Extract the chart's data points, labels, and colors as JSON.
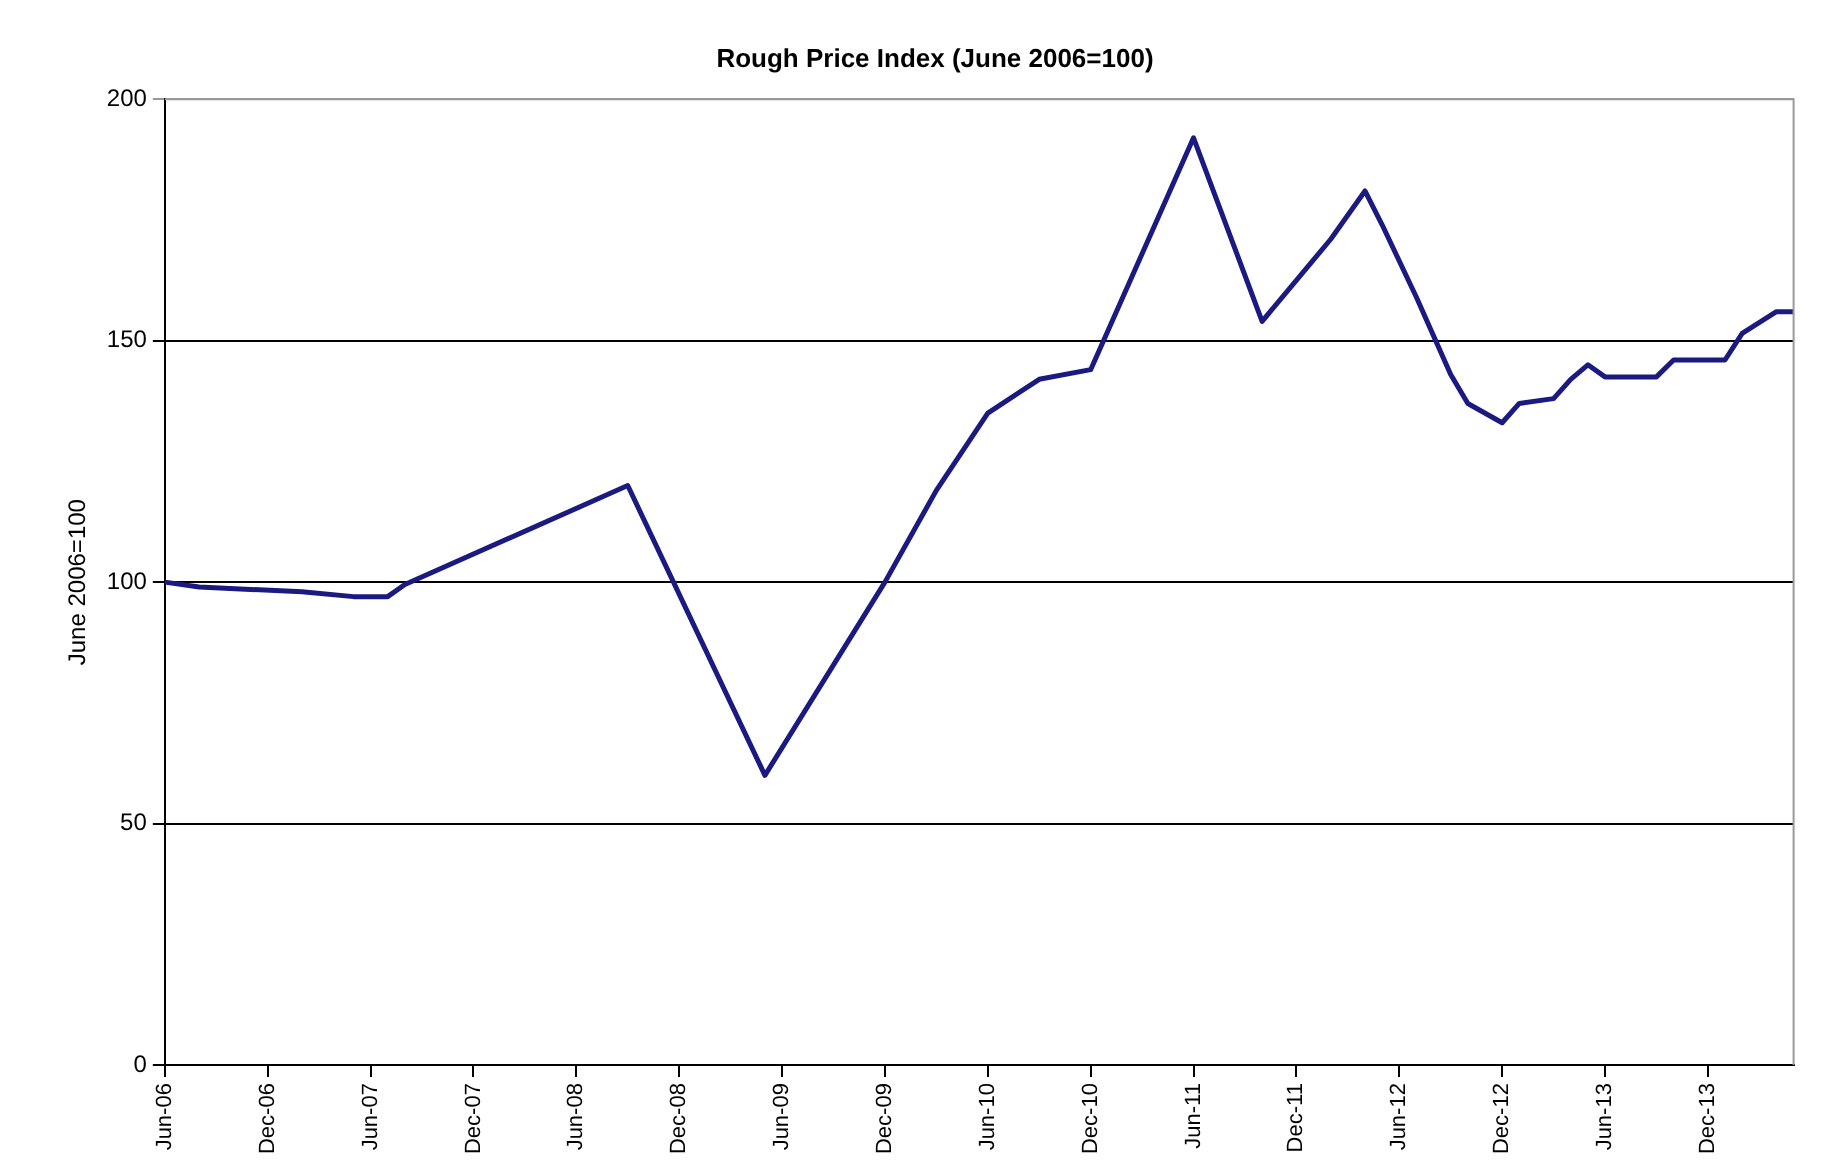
{
  "chart_data": {
    "type": "line",
    "title": "Rough Price Index (June 2006=100)",
    "ylabel": "June 2006=100",
    "categories": [
      "Jun-06",
      null,
      null,
      null,
      null,
      null,
      "Dec-06",
      null,
      null,
      null,
      null,
      null,
      "Jun-07",
      null,
      null,
      null,
      null,
      null,
      "Dec-07",
      null,
      null,
      null,
      null,
      null,
      "Jun-08",
      null,
      null,
      null,
      null,
      null,
      "Dec-08",
      null,
      null,
      null,
      null,
      null,
      "Jun-09",
      null,
      null,
      null,
      null,
      null,
      "Dec-09",
      null,
      null,
      null,
      null,
      null,
      "Jun-10",
      null,
      null,
      null,
      null,
      null,
      "Dec-10",
      null,
      null,
      null,
      null,
      null,
      "Jun-11",
      null,
      null,
      null,
      null,
      null,
      "Dec-11",
      null,
      null,
      null,
      null,
      null,
      "Jun-12",
      null,
      null,
      null,
      null,
      null,
      "Dec-12",
      null,
      null,
      null,
      null,
      null,
      "Jun-13",
      null,
      null,
      null,
      null,
      null,
      "Dec-13",
      null,
      null,
      null,
      null,
      null
    ],
    "series": [
      {
        "color": "#1a1a80",
        "values": [
          100,
          null,
          99,
          null,
          null,
          98.5,
          null,
          null,
          98,
          null,
          null,
          97,
          null,
          97,
          99.5,
          null,
          null,
          null,
          null,
          null,
          null,
          null,
          null,
          null,
          null,
          null,
          null,
          120,
          null,
          null,
          null,
          null,
          null,
          null,
          null,
          60,
          null,
          null,
          null,
          null,
          null,
          null,
          100,
          null,
          null,
          119,
          null,
          null,
          135,
          null,
          null,
          142,
          null,
          null,
          144,
          null,
          null,
          null,
          null,
          null,
          192,
          null,
          null,
          null,
          154,
          null,
          null,
          null,
          171,
          null,
          181,
          174,
          null,
          159,
          null,
          143,
          137,
          null,
          133,
          137,
          null,
          138,
          142,
          145,
          142.5,
          null,
          null,
          142.5,
          146,
          null,
          null,
          146,
          151.5,
          null,
          156,
          156
        ]
      }
    ],
    "ylim": [
      0,
      200
    ],
    "yticks": [
      0,
      50,
      100,
      150,
      200
    ],
    "grid": "y",
    "legend": false,
    "marker": "none",
    "line_style": "solid"
  }
}
